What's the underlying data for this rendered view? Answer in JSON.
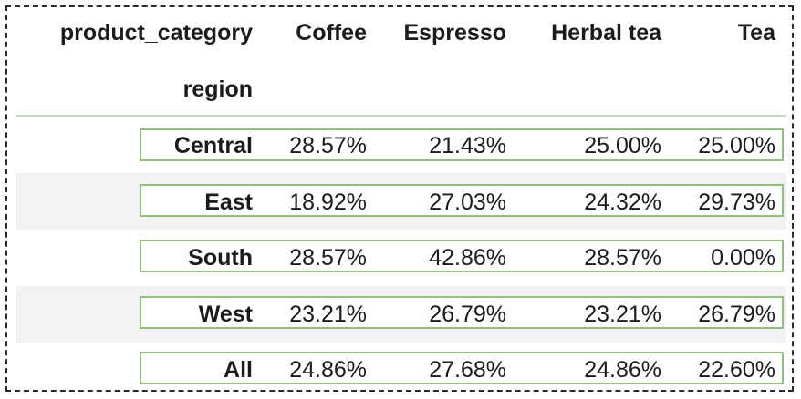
{
  "table": {
    "columns_label": "product_category",
    "index_label": "region",
    "columns": [
      "Coffee",
      "Espresso",
      "Herbal tea",
      "Tea"
    ],
    "rows": [
      {
        "label": "Central",
        "values": [
          "28.57%",
          "21.43%",
          "25.00%",
          "25.00%"
        ]
      },
      {
        "label": "East",
        "values": [
          "18.92%",
          "27.03%",
          "24.32%",
          "29.73%"
        ]
      },
      {
        "label": "South",
        "values": [
          "28.57%",
          "42.86%",
          "28.57%",
          "0.00%"
        ]
      },
      {
        "label": "West",
        "values": [
          "23.21%",
          "26.79%",
          "23.21%",
          "26.79%"
        ]
      },
      {
        "label": "All",
        "values": [
          "24.86%",
          "27.68%",
          "24.86%",
          "22.60%"
        ]
      }
    ]
  },
  "colors": {
    "row_highlight_border": "#8fc07c",
    "header_rule": "#c9d9c4",
    "stripe": "#f2f2f2",
    "frame": "#2b2b2b"
  }
}
